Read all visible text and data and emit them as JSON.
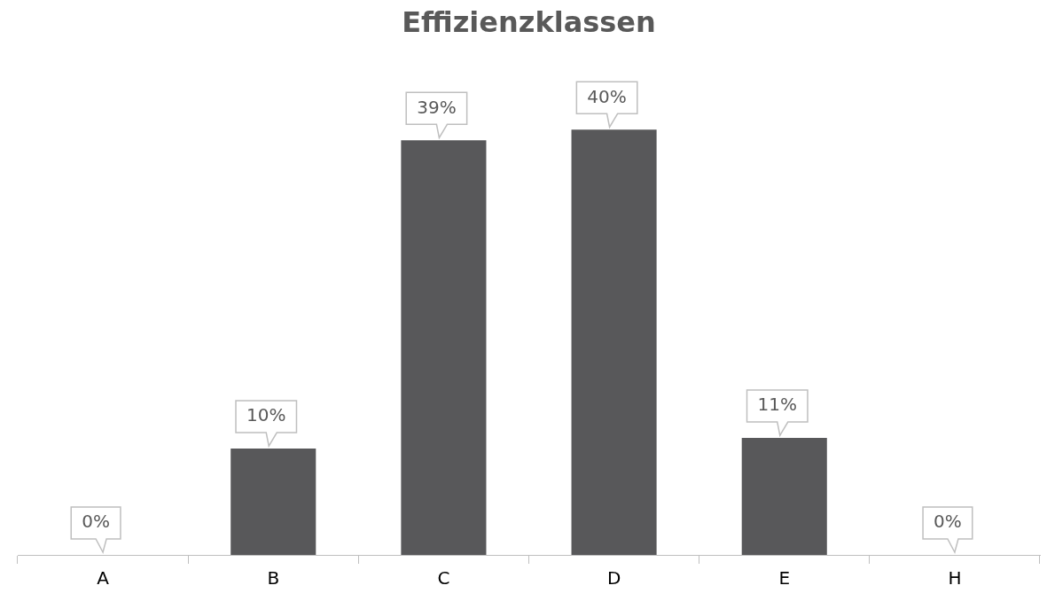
{
  "chart_data": {
    "type": "bar",
    "title": "Effizienzklassen",
    "categories": [
      "A",
      "B",
      "C",
      "D",
      "E",
      "H"
    ],
    "values": [
      0,
      10,
      39,
      40,
      11,
      0
    ],
    "value_labels": [
      "0%",
      "10%",
      "39%",
      "40%",
      "11%",
      "0%"
    ],
    "color": "#58585a"
  }
}
